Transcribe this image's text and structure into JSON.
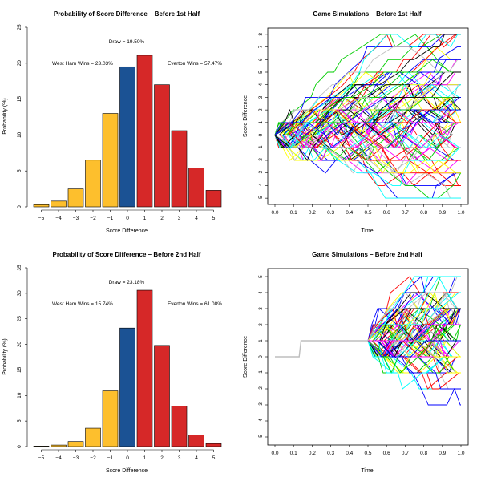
{
  "colors": {
    "west_ham": "#FDBF2D",
    "draw": "#1B5294",
    "everton": "#D62828"
  },
  "chart_data": [
    {
      "type": "bar",
      "title": "Probability of Score Difference – Before 1st Half",
      "xlabel": "Score Difference",
      "ylabel": "Probability (%)",
      "ylim": [
        0,
        25
      ],
      "yticks": [
        0,
        5,
        10,
        15,
        20,
        25
      ],
      "categories": [
        "−5",
        "−4",
        "−3",
        "−2",
        "−1",
        "0",
        "1",
        "2",
        "3",
        "4",
        "5"
      ],
      "values": [
        0.3,
        0.8,
        2.5,
        6.5,
        13.0,
        19.5,
        21.1,
        17.0,
        10.6,
        5.4,
        2.3
      ],
      "bar_groups": [
        "west_ham",
        "west_ham",
        "west_ham",
        "west_ham",
        "west_ham",
        "draw",
        "everton",
        "everton",
        "everton",
        "everton",
        "everton"
      ],
      "annotations": {
        "draw": "Draw = 19.50%",
        "west_ham": "West Ham Wins = 23.03%",
        "everton": "Everton Wins = 57.47%"
      }
    },
    {
      "type": "line",
      "title": "Game Simulations – Before 1st Half",
      "xlabel": "Time",
      "ylabel": "Score Difference",
      "xlim": [
        0,
        1
      ],
      "ylim": [
        -5.5,
        8.5
      ],
      "xticks": [
        "0.0",
        "0.1",
        "0.2",
        "0.3",
        "0.4",
        "0.5",
        "0.6",
        "0.7",
        "0.8",
        "0.9",
        "1.0"
      ],
      "yticks": [
        "-5",
        "-4",
        "-3",
        "-2",
        "-1",
        "0",
        "1",
        "2",
        "3",
        "4",
        "5",
        "6",
        "7",
        "8"
      ],
      "line_colors": [
        "#000000",
        "#FF0000",
        "#00CD00",
        "#0000FF",
        "#00FFFF",
        "#FF00FF",
        "#FFFF00",
        "#BEBEBE"
      ],
      "n_series": 110,
      "start_value": 0,
      "simulated": true
    },
    {
      "type": "bar",
      "title": "Probability of Score Difference – Before 2nd Half",
      "xlabel": "Score Difference",
      "ylabel": "Probability (%)",
      "ylim": [
        0,
        35
      ],
      "yticks": [
        0,
        5,
        10,
        15,
        20,
        25,
        30,
        35
      ],
      "categories": [
        "−5",
        "−4",
        "−3",
        "−2",
        "−1",
        "0",
        "1",
        "2",
        "3",
        "4",
        "5"
      ],
      "values": [
        0.1,
        0.3,
        1.0,
        3.6,
        10.9,
        23.2,
        30.6,
        19.8,
        7.9,
        2.3,
        0.6
      ],
      "bar_groups": [
        "west_ham",
        "west_ham",
        "west_ham",
        "west_ham",
        "west_ham",
        "draw",
        "everton",
        "everton",
        "everton",
        "everton",
        "everton"
      ],
      "annotations": {
        "draw": "Draw = 23.18%",
        "west_ham": "West Ham Wins = 15.74%",
        "everton": "Everton Wins = 61.08%"
      }
    },
    {
      "type": "line",
      "title": "Game Simulations – Before 2nd Half",
      "xlabel": "Time",
      "ylabel": "Score Difference",
      "xlim": [
        0,
        1
      ],
      "ylim": [
        -5.5,
        5.5
      ],
      "xticks": [
        "0.0",
        "0.1",
        "0.2",
        "0.3",
        "0.4",
        "0.5",
        "0.6",
        "0.7",
        "0.8",
        "0.9",
        "1.0"
      ],
      "yticks": [
        "-5",
        "-4",
        "-3",
        "-2",
        "-1",
        "0",
        "1",
        "2",
        "3",
        "4",
        "5"
      ],
      "line_colors": [
        "#000000",
        "#FF0000",
        "#00CD00",
        "#0000FF",
        "#00FFFF",
        "#FF00FF",
        "#FFFF00",
        "#BEBEBE"
      ],
      "n_series": 110,
      "observed_path": {
        "x": [
          0,
          0.13,
          0.14,
          0.5
        ],
        "y": [
          0,
          0,
          1,
          1
        ]
      },
      "simulated_from": 0.5,
      "simulated": true
    }
  ]
}
